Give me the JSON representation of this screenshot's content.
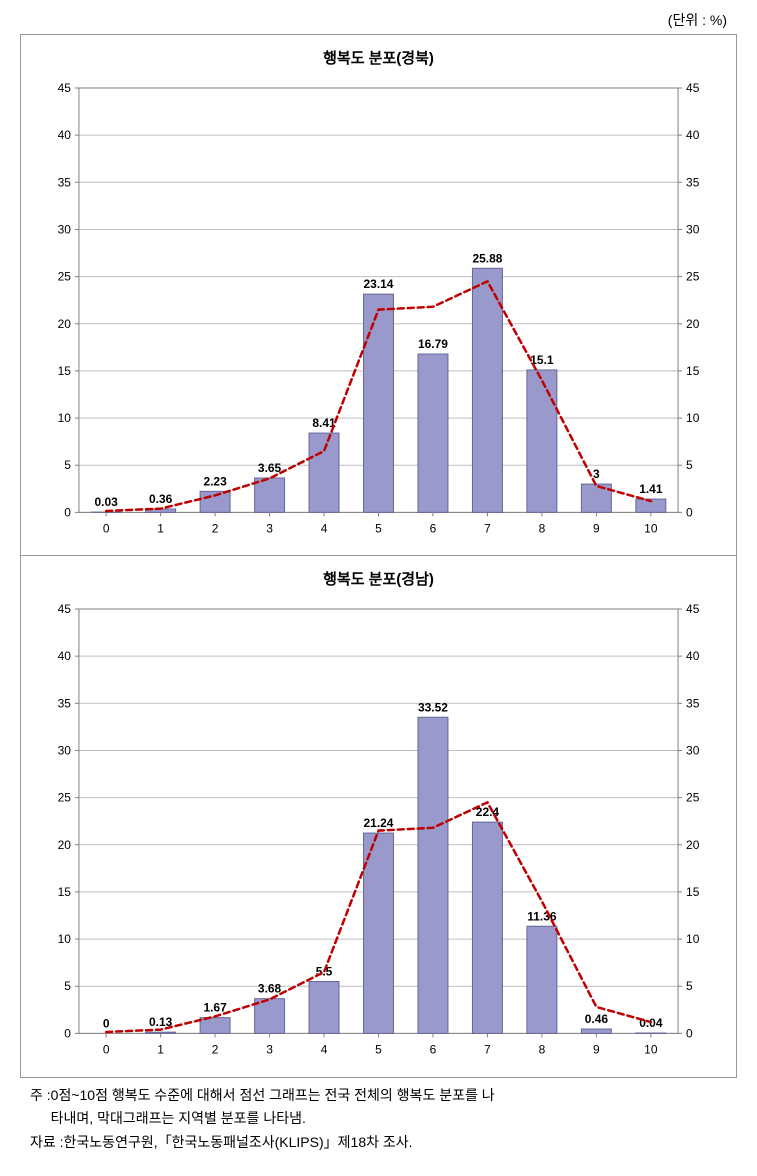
{
  "unit_label": "(단위 : %)",
  "chart_common": {
    "type": "bar+line",
    "categories": [
      "0",
      "1",
      "2",
      "3",
      "4",
      "5",
      "6",
      "7",
      "8",
      "9",
      "10"
    ],
    "ylim": [
      0,
      45
    ],
    "ytick_step": 5,
    "bar_color": "#9999cc",
    "bar_border_color": "#666699",
    "line_color": "#c00000",
    "line_dash": "6,4",
    "line_width": 2.5,
    "marker_style": "none",
    "grid_color": "#bfbfbf",
    "axis_color": "#808080",
    "background_color": "#ffffff",
    "label_fontsize": 12,
    "title_fontsize": 15,
    "tick_fontsize": 12,
    "bar_width_ratio": 0.55,
    "national_line_values": [
      0.15,
      0.4,
      1.8,
      3.6,
      6.5,
      21.5,
      21.8,
      24.5,
      14.0,
      2.8,
      1.2
    ]
  },
  "charts": [
    {
      "title": "행복도 분포(경북)",
      "values": [
        0.03,
        0.36,
        2.23,
        3.65,
        8.41,
        23.14,
        16.79,
        25.88,
        15.1,
        3,
        1.41
      ],
      "value_labels": [
        "0.03",
        "0.36",
        "2.23",
        "3.65",
        "8.41",
        "23.14",
        "16.79",
        "25.88",
        "15.1",
        "3",
        "1.41"
      ]
    },
    {
      "title": "행복도 분포(경남)",
      "values": [
        0,
        0.13,
        1.67,
        3.68,
        5.5,
        21.24,
        33.52,
        22.4,
        11.36,
        0.46,
        0.04
      ],
      "value_labels": [
        "0",
        "0.13",
        "1.67",
        "3.68",
        "5.5",
        "21.24",
        "33.52",
        "22.4",
        "11.36",
        "0.46",
        "0.04"
      ]
    }
  ],
  "footnotes": {
    "note_prefix": "주 : ",
    "note_line1": "0점~10점 행복도 수준에 대해서 점선 그래프는 전국 전체의 행복도 분포를 나",
    "note_line2": "타내며, 막대그래프는 지역별 분포를 나타냄.",
    "source_prefix": "자료 : ",
    "source_text": "한국노동연구원,「한국노동패널조사(KLIPS)」제18차 조사."
  }
}
